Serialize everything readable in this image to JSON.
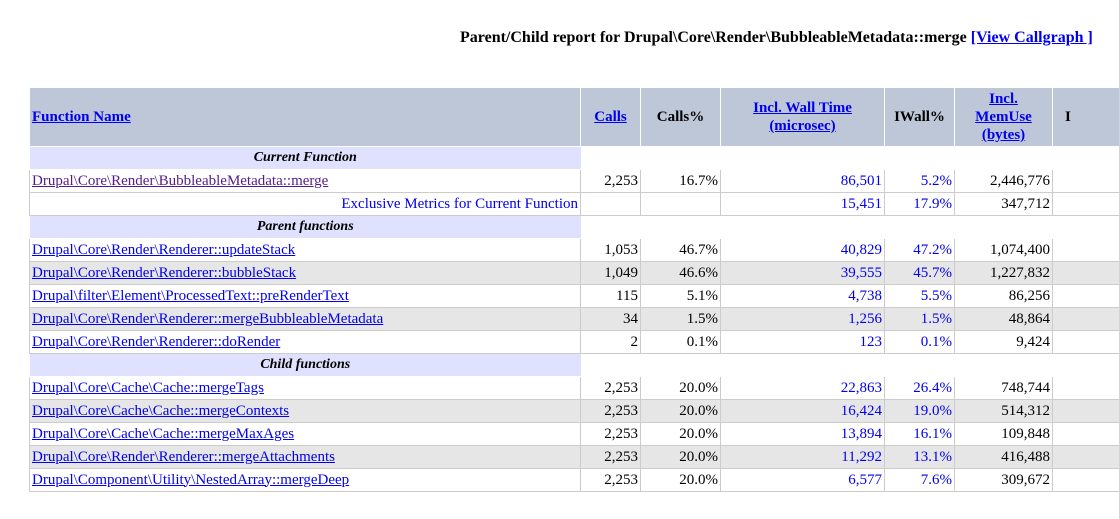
{
  "report": {
    "title_prefix": "Parent/Child report for Drupal\\Core\\Render\\BubbleableMetadata::merge",
    "view_callgraph": "[View Callgraph ]"
  },
  "columns": {
    "function_name": "Function Name",
    "calls": "Calls",
    "calls_pct": "Calls%",
    "incl_wall_time_1": "Incl. Wall Time",
    "incl_wall_time_2": "(microsec)",
    "iwall_pct": "IWall%",
    "incl_memuse_1": "Incl.",
    "incl_memuse_2": "MemUse",
    "incl_memuse_3": "(bytes)",
    "last": "I"
  },
  "sections": {
    "current": "Current Function",
    "parent": "Parent functions",
    "child": "Child functions"
  },
  "current": {
    "name": "Drupal\\Core\\Render\\BubbleableMetadata::merge",
    "calls": "2,253",
    "calls_pct": "16.7%",
    "wall": "86,501",
    "iwall_pct": "5.2%",
    "mem": "2,446,776"
  },
  "exclusive": {
    "label": "Exclusive Metrics for Current Function",
    "wall": "15,451",
    "iwall_pct": "17.9%",
    "mem": "347,712"
  },
  "parents": [
    {
      "name": "Drupal\\Core\\Render\\Renderer::updateStack",
      "calls": "1,053",
      "calls_pct": "46.7%",
      "wall": "40,829",
      "iwall_pct": "47.2%",
      "mem": "1,074,400"
    },
    {
      "name": "Drupal\\Core\\Render\\Renderer::bubbleStack",
      "calls": "1,049",
      "calls_pct": "46.6%",
      "wall": "39,555",
      "iwall_pct": "45.7%",
      "mem": "1,227,832"
    },
    {
      "name": "Drupal\\filter\\Element\\ProcessedText::preRenderText",
      "calls": "115",
      "calls_pct": "5.1%",
      "wall": "4,738",
      "iwall_pct": "5.5%",
      "mem": "86,256"
    },
    {
      "name": "Drupal\\Core\\Render\\Renderer::mergeBubbleableMetadata",
      "calls": "34",
      "calls_pct": "1.5%",
      "wall": "1,256",
      "iwall_pct": "1.5%",
      "mem": "48,864"
    },
    {
      "name": "Drupal\\Core\\Render\\Renderer::doRender",
      "calls": "2",
      "calls_pct": "0.1%",
      "wall": "123",
      "iwall_pct": "0.1%",
      "mem": "9,424"
    }
  ],
  "children": [
    {
      "name": "Drupal\\Core\\Cache\\Cache::mergeTags",
      "calls": "2,253",
      "calls_pct": "20.0%",
      "wall": "22,863",
      "iwall_pct": "26.4%",
      "mem": "748,744"
    },
    {
      "name": "Drupal\\Core\\Cache\\Cache::mergeContexts",
      "calls": "2,253",
      "calls_pct": "20.0%",
      "wall": "16,424",
      "iwall_pct": "19.0%",
      "mem": "514,312"
    },
    {
      "name": "Drupal\\Core\\Cache\\Cache::mergeMaxAges",
      "calls": "2,253",
      "calls_pct": "20.0%",
      "wall": "13,894",
      "iwall_pct": "16.1%",
      "mem": "109,848"
    },
    {
      "name": "Drupal\\Core\\Render\\Renderer::mergeAttachments",
      "calls": "2,253",
      "calls_pct": "20.0%",
      "wall": "11,292",
      "iwall_pct": "13.1%",
      "mem": "416,488"
    },
    {
      "name": "Drupal\\Component\\Utility\\NestedArray::mergeDeep",
      "calls": "2,253",
      "calls_pct": "20.0%",
      "wall": "6,577",
      "iwall_pct": "7.6%",
      "mem": "309,672"
    }
  ]
}
